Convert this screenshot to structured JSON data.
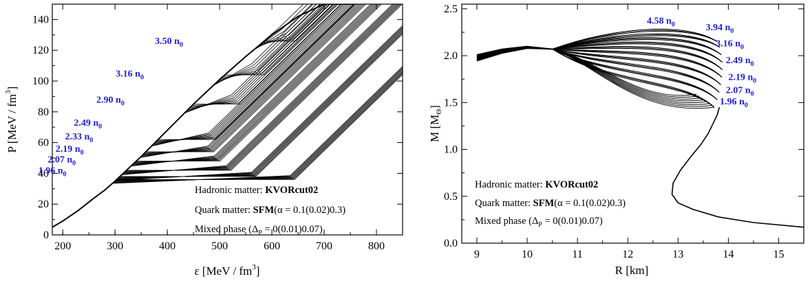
{
  "chart_data": [
    {
      "type": "line",
      "xlim": [
        180,
        850
      ],
      "ylim": [
        0,
        150
      ],
      "xticks": [
        200,
        300,
        400,
        500,
        600,
        700,
        800
      ],
      "yticks": [
        0,
        20,
        40,
        60,
        80,
        100,
        120,
        140
      ],
      "xlabel": {
        "main": "ε [MeV / fm",
        "sup": "3",
        "end": "]"
      },
      "ylabel": {
        "main": "P [MeV / fm",
        "sup": "3",
        "end": "]"
      },
      "hadronic_curve": {
        "x": [
          180,
          200,
          230,
          260,
          280,
          300,
          350,
          400,
          450,
          500,
          550,
          600,
          650,
          700,
          760
        ],
        "y": [
          5,
          9,
          16,
          24,
          29,
          35,
          51,
          68,
          85,
          101,
          116,
          130,
          142,
          150,
          150
        ]
      },
      "onset_pressures": [
        36,
        38,
        42,
        48,
        54,
        62,
        85,
        104,
        126
      ],
      "latent_widths": [
        340,
        260,
        200,
        160,
        130,
        110,
        90,
        75,
        60
      ],
      "quark_slope": 0.33,
      "delta_p": [
        0,
        0.01,
        0.02,
        0.03,
        0.04,
        0.05,
        0.06,
        0.07
      ],
      "labels": [
        {
          "n": "1.96",
          "x": 207,
          "y": 40
        },
        {
          "n": "2.07",
          "x": 225,
          "y": 47
        },
        {
          "n": "2.19",
          "x": 240,
          "y": 54
        },
        {
          "n": "2.33",
          "x": 258,
          "y": 62
        },
        {
          "n": "2.49",
          "x": 275,
          "y": 71
        },
        {
          "n": "2.90",
          "x": 318,
          "y": 86
        },
        {
          "n": "3.16",
          "x": 355,
          "y": 103
        },
        {
          "n": "3.50",
          "x": 430,
          "y": 124
        }
      ],
      "info": {
        "line1_pre": "Hadronic matter: ",
        "line1_bold": "KVORcut02",
        "line2_pre": "Quark matter: ",
        "line2_bold": "SFM",
        "line2_post": "(α = 0.1(0.02)0.3)",
        "line3_pre": "Mixed phase (Δ",
        "line3_sub": "P",
        "line3_post": " = 0(0.01)0.07)"
      }
    },
    {
      "type": "line",
      "xlim": [
        8.7,
        15.5
      ],
      "ylim": [
        0,
        2.55
      ],
      "xticks": [
        9,
        10,
        11,
        12,
        13,
        14,
        15
      ],
      "yticks": [
        0.0,
        0.5,
        1.0,
        1.5,
        2.0,
        2.5
      ],
      "xlabel": {
        "main": "R [km]"
      },
      "ylabel": {
        "main": "M [M",
        "sub": "Θ",
        "end": "]"
      },
      "hadronic_branch": {
        "R": [
          15.5,
          14.5,
          13.8,
          13.3,
          13.0,
          12.88,
          12.9,
          13.05,
          13.25,
          13.45,
          13.6,
          13.7,
          13.78,
          13.82
        ],
        "M": [
          0.17,
          0.22,
          0.28,
          0.36,
          0.43,
          0.52,
          0.64,
          0.78,
          0.92,
          1.05,
          1.17,
          1.28,
          1.37,
          1.45
        ]
      },
      "branch_onset_R": [
        13.72,
        13.78,
        13.82,
        13.85,
        13.87,
        13.88,
        13.88,
        13.86,
        13.83,
        13.78
      ],
      "branch_onset_M": [
        1.45,
        1.53,
        1.61,
        1.69,
        1.77,
        1.85,
        1.93,
        2.01,
        2.09,
        2.15
      ],
      "branch_peak_M": [
        1.66,
        1.75,
        1.84,
        1.92,
        2.0,
        2.07,
        2.13,
        2.18,
        2.22,
        2.27
      ],
      "converge": {
        "R": 10.5,
        "M": 2.07
      },
      "tail": {
        "R": [
          10.5,
          10.0,
          9.5,
          9.0
        ],
        "M": [
          2.07,
          2.09,
          2.05,
          1.98
        ]
      },
      "labels": [
        {
          "n": "4.58",
          "x": 12.38,
          "y": 2.34
        },
        {
          "n": "3.94",
          "x": 13.55,
          "y": 2.27
        },
        {
          "n": "3.16",
          "x": 13.75,
          "y": 2.1
        },
        {
          "n": "2.49",
          "x": 13.95,
          "y": 1.92
        },
        {
          "n": "2.19",
          "x": 14.0,
          "y": 1.74
        },
        {
          "n": "2.07",
          "x": 13.95,
          "y": 1.6
        },
        {
          "n": "1.96",
          "x": 13.83,
          "y": 1.48
        }
      ],
      "info": {
        "line1_pre": "Hadronic matter: ",
        "line1_bold": "KVORcut02",
        "line2_pre": "Quark matter: ",
        "line2_bold": "SFM",
        "line2_post": "(α = 0.1(0.02)0.3)",
        "line3_pre": "Mixed phase (Δ",
        "line3_sub": "P",
        "line3_post": " = 0(0.01)0.07)"
      }
    }
  ]
}
